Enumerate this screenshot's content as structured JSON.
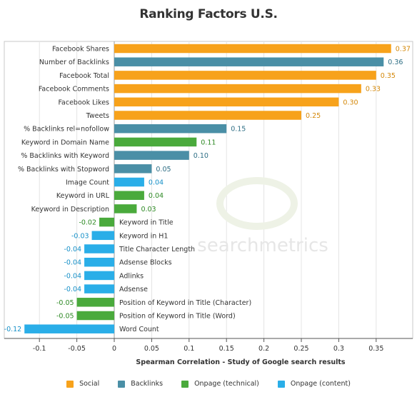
{
  "chart_data": {
    "type": "bar",
    "orientation": "horizontal",
    "title": "Ranking Factors U.S.",
    "xlabel": "Spearman Correlation - Study of Google search results",
    "ylabel": "",
    "xlim": [
      -0.13,
      0.38
    ],
    "xticks": [
      "-0.1",
      "-0.05",
      "0",
      "0.05",
      "0.1",
      "0.15",
      "0.2",
      "0.25",
      "0.3",
      "0.35"
    ],
    "xtick_values": [
      -0.1,
      -0.05,
      0,
      0.05,
      0.1,
      0.15,
      0.2,
      0.25,
      0.3,
      0.35
    ],
    "grid": true,
    "legend_position": "bottom",
    "series": [
      {
        "name": "Social",
        "color": "#f7a21b"
      },
      {
        "name": "Backlinks",
        "color": "#4a8fa6"
      },
      {
        "name": "Onpage (technical)",
        "color": "#4aaa3c"
      },
      {
        "name": "Onpage (content)",
        "color": "#2aaee8"
      }
    ],
    "bars": [
      {
        "label": "Facebook Shares",
        "value": 0.37,
        "value_label": "0.37",
        "series": "Social"
      },
      {
        "label": "Number of Backlinks",
        "value": 0.36,
        "value_label": "0.36",
        "series": "Backlinks"
      },
      {
        "label": "Facebook Total",
        "value": 0.35,
        "value_label": "0.35",
        "series": "Social"
      },
      {
        "label": "Facebook Comments",
        "value": 0.33,
        "value_label": "0.33",
        "series": "Social"
      },
      {
        "label": "Facebook Likes",
        "value": 0.3,
        "value_label": "0.30",
        "series": "Social"
      },
      {
        "label": "Tweets",
        "value": 0.25,
        "value_label": "0.25",
        "series": "Social"
      },
      {
        "label": "% Backlinks rel=nofollow",
        "value": 0.15,
        "value_label": "0.15",
        "series": "Backlinks"
      },
      {
        "label": "Keyword in Domain Name",
        "value": 0.11,
        "value_label": "0.11",
        "series": "Onpage (technical)"
      },
      {
        "label": "% Backlinks with Keyword",
        "value": 0.1,
        "value_label": "0.10",
        "series": "Backlinks"
      },
      {
        "label": "% Backlinks with Stopword",
        "value": 0.05,
        "value_label": "0.05",
        "series": "Backlinks"
      },
      {
        "label": "Image Count",
        "value": 0.04,
        "value_label": "0.04",
        "series": "Onpage (content)"
      },
      {
        "label": "Keyword in URL",
        "value": 0.04,
        "value_label": "0.04",
        "series": "Onpage (technical)"
      },
      {
        "label": "Keyword in Description",
        "value": 0.03,
        "value_label": "0.03",
        "series": "Onpage (technical)"
      },
      {
        "label": "Keyword in Title",
        "value": -0.02,
        "value_label": "-0.02",
        "series": "Onpage (technical)"
      },
      {
        "label": "Keyword in H1",
        "value": -0.03,
        "value_label": "-0.03",
        "series": "Onpage (content)"
      },
      {
        "label": "Title Character Length",
        "value": -0.04,
        "value_label": "-0.04",
        "series": "Onpage (content)"
      },
      {
        "label": "Adsense Blocks",
        "value": -0.04,
        "value_label": "-0.04",
        "series": "Onpage (content)"
      },
      {
        "label": "Adlinks",
        "value": -0.04,
        "value_label": "-0.04",
        "series": "Onpage (content)"
      },
      {
        "label": "Adsense",
        "value": -0.04,
        "value_label": "-0.04",
        "series": "Onpage (content)"
      },
      {
        "label": "Position of Keyword in Title (Character)",
        "value": -0.05,
        "value_label": "-0.05",
        "series": "Onpage (technical)"
      },
      {
        "label": "Position of Keyword in Title (Word)",
        "value": -0.05,
        "value_label": "-0.05",
        "series": "Onpage (technical)"
      },
      {
        "label": "Word Count",
        "value": -0.12,
        "value_label": "-0.12",
        "series": "Onpage (content)"
      }
    ],
    "watermark": "searchmetrics"
  }
}
